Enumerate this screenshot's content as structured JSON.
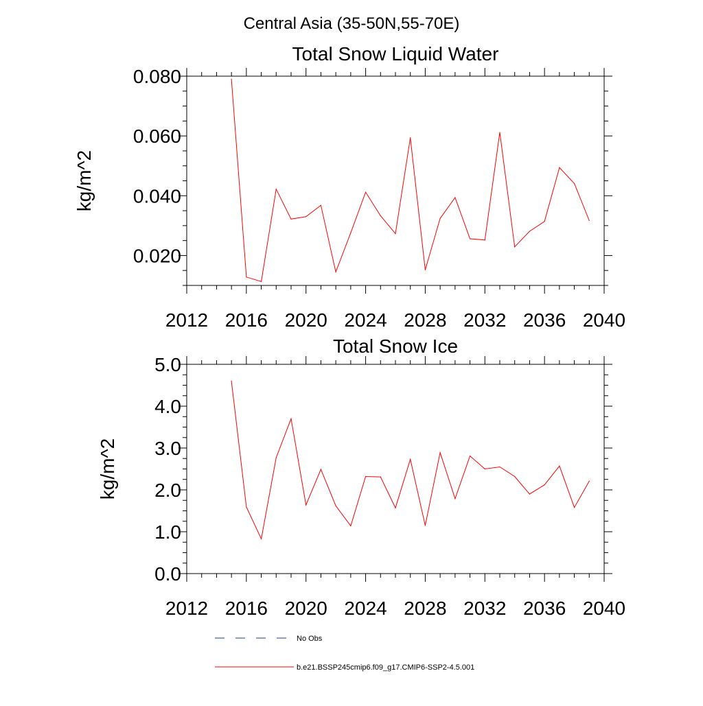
{
  "header": {
    "title": "Central Asia (35-50N,55-70E)"
  },
  "chart_data": [
    {
      "type": "line",
      "title": "Total Snow Liquid Water",
      "xlabel": "",
      "ylabel": "kg/m^2",
      "xlim": [
        2012,
        2040
      ],
      "ylim": [
        0.01,
        0.08
      ],
      "xticks": [
        2012,
        2016,
        2020,
        2024,
        2028,
        2032,
        2036,
        2040
      ],
      "xtick_labels": [
        "2012",
        "2016",
        "2020",
        "2024",
        "2028",
        "2032",
        "2036",
        "2040"
      ],
      "yticks": [
        0.02,
        0.04,
        0.06,
        0.08
      ],
      "ytick_labels": [
        "0.020",
        "0.040",
        "0.060",
        "0.080"
      ],
      "grid": false,
      "series": [
        {
          "name": "b.e21.BSSP245cmip6.f09_g17.CMIP6-SSP2-4.5.001",
          "color": "#ff0000",
          "x": [
            2015,
            2016,
            2017,
            2018,
            2019,
            2020,
            2021,
            2022,
            2023,
            2024,
            2025,
            2026,
            2027,
            2028,
            2029,
            2030,
            2031,
            2032,
            2033,
            2034,
            2035,
            2036,
            2037,
            2038,
            2039
          ],
          "values": [
            0.079,
            0.0128,
            0.0113,
            0.0422,
            0.0322,
            0.033,
            0.0368,
            0.0145,
            0.0276,
            0.0412,
            0.0333,
            0.0273,
            0.0594,
            0.0152,
            0.0324,
            0.0394,
            0.0256,
            0.0252,
            0.0612,
            0.0229,
            0.0281,
            0.0314,
            0.0494,
            0.0441,
            0.0317
          ]
        }
      ]
    },
    {
      "type": "line",
      "title": "Total Snow Ice",
      "xlabel": "",
      "ylabel": "kg/m^2",
      "xlim": [
        2012,
        2040
      ],
      "ylim": [
        0,
        5
      ],
      "xticks": [
        2012,
        2016,
        2020,
        2024,
        2028,
        2032,
        2036,
        2040
      ],
      "xtick_labels": [
        "2012",
        "2016",
        "2020",
        "2024",
        "2028",
        "2032",
        "2036",
        "2040"
      ],
      "yticks": [
        0,
        1,
        2,
        3,
        4,
        5
      ],
      "ytick_labels": [
        "0.0",
        "1.0",
        "2.0",
        "3.0",
        "4.0",
        "5.0"
      ],
      "grid": false,
      "series": [
        {
          "name": "b.e21.BSSP245cmip6.f09_g17.CMIP6-SSP2-4.5.001",
          "color": "#ff0000",
          "x": [
            2015,
            2016,
            2017,
            2018,
            2019,
            2020,
            2021,
            2022,
            2023,
            2024,
            2025,
            2026,
            2027,
            2028,
            2029,
            2030,
            2031,
            2032,
            2033,
            2034,
            2035,
            2036,
            2037,
            2038,
            2039
          ],
          "values": [
            4.6,
            1.59,
            0.83,
            2.77,
            3.7,
            1.64,
            2.49,
            1.62,
            1.14,
            2.32,
            2.31,
            1.57,
            2.73,
            1.15,
            2.89,
            1.79,
            2.81,
            2.5,
            2.55,
            2.32,
            1.9,
            2.12,
            2.57,
            1.58,
            2.21
          ]
        }
      ]
    }
  ],
  "legend": {
    "items": [
      {
        "label": "No Obs",
        "style": "dashed",
        "color": "#1f3a8a"
      },
      {
        "label": "b.e21.BSSP245cmip6.f09_g17.CMIP6-SSP2-4.5.001",
        "style": "solid",
        "color": "#ff0000"
      }
    ]
  }
}
